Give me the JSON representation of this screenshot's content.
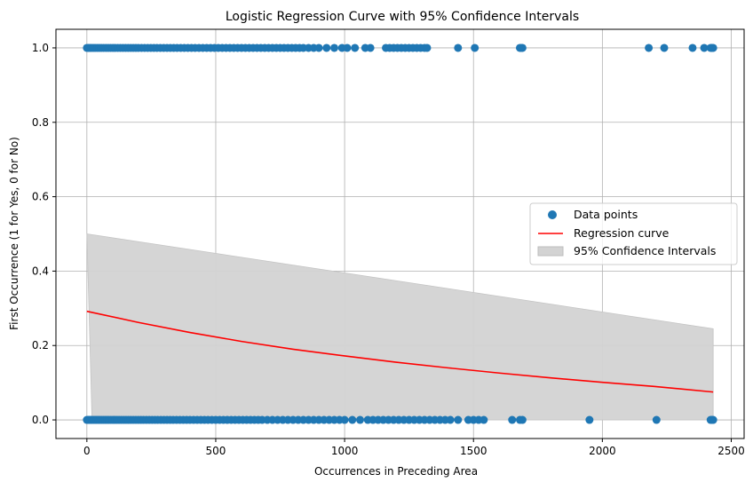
{
  "chart_data": {
    "type": "scatter",
    "title": "Logistic Regression Curve with 95% Confidence Intervals",
    "xlabel": "Occurrences in Preceding Area",
    "ylabel": "First Occurrence (1 for Yes, 0 for No)",
    "xlim": [
      -120,
      2550
    ],
    "ylim": [
      -0.05,
      1.05
    ],
    "x_ticks": [
      0,
      500,
      1000,
      1500,
      2000,
      2500
    ],
    "x_tick_labels": [
      "0",
      "500",
      "1000",
      "1500",
      "2000",
      "2500"
    ],
    "y_ticks": [
      0.0,
      0.2,
      0.4,
      0.6,
      0.8,
      1.0
    ],
    "y_tick_labels": [
      "0.0",
      "0.2",
      "0.4",
      "0.6",
      "0.8",
      "1.0"
    ],
    "grid": true,
    "legend_position": "center-right",
    "legend": [
      "Data points",
      "Regression curve",
      "95% Confidence Intervals"
    ],
    "colors": {
      "points": "#1f77b4",
      "curve": "#ff0000",
      "band": "#d3d3d3",
      "grid": "#b0b0b0"
    },
    "series": [
      {
        "name": "Data points",
        "type": "scatter",
        "y1_x": [
          0,
          6,
          12,
          18,
          25,
          32,
          40,
          48,
          56,
          65,
          74,
          83,
          92,
          101,
          110,
          120,
          130,
          140,
          150,
          160,
          170,
          180,
          190,
          200,
          212,
          224,
          236,
          248,
          260,
          272,
          285,
          298,
          311,
          324,
          337,
          350,
          364,
          378,
          392,
          406,
          420,
          435,
          450,
          465,
          480,
          495,
          510,
          525,
          540,
          555,
          570,
          585,
          600,
          615,
          630,
          645,
          660,
          675,
          690,
          705,
          720,
          735,
          750,
          765,
          780,
          795,
          810,
          825,
          840,
          860,
          880,
          900,
          930,
          960,
          990,
          1010,
          1040,
          1080,
          1100,
          1160,
          1175,
          1190,
          1205,
          1220,
          1235,
          1250,
          1265,
          1280,
          1295,
          1310,
          1320,
          1440,
          1505,
          1680,
          1685,
          1690,
          2180,
          2240,
          2350,
          2395,
          2420,
          2425,
          2430
        ],
        "y1_y": 1,
        "y0_x": [
          0,
          5,
          10,
          15,
          20,
          26,
          32,
          38,
          44,
          50,
          57,
          64,
          71,
          78,
          85,
          93,
          101,
          109,
          117,
          125,
          134,
          143,
          152,
          161,
          170,
          180,
          190,
          200,
          210,
          220,
          231,
          242,
          253,
          264,
          275,
          287,
          299,
          311,
          323,
          335,
          348,
          361,
          374,
          387,
          400,
          414,
          428,
          442,
          456,
          470,
          485,
          500,
          515,
          530,
          545,
          560,
          575,
          590,
          605,
          620,
          635,
          650,
          665,
          680,
          700,
          720,
          740,
          760,
          780,
          800,
          820,
          840,
          860,
          880,
          900,
          920,
          940,
          960,
          980,
          1000,
          1030,
          1060,
          1090,
          1110,
          1130,
          1150,
          1170,
          1190,
          1210,
          1230,
          1250,
          1270,
          1290,
          1310,
          1330,
          1350,
          1370,
          1390,
          1410,
          1440,
          1480,
          1500,
          1520,
          1540,
          1650,
          1680,
          1690,
          1950,
          2210,
          2420,
          2425,
          2430
        ],
        "y0_y": 0
      },
      {
        "name": "Regression curve",
        "type": "line",
        "x": [
          0,
          200,
          400,
          600,
          800,
          1000,
          1200,
          1400,
          1600,
          1800,
          2000,
          2200,
          2430
        ],
        "y": [
          0.292,
          0.262,
          0.235,
          0.211,
          0.19,
          0.172,
          0.155,
          0.14,
          0.126,
          0.113,
          0.101,
          0.09,
          0.075
        ]
      },
      {
        "name": "95% Confidence Intervals",
        "type": "area",
        "x": [
          0,
          20,
          2430
        ],
        "upper": [
          0.5,
          0.498,
          0.245
        ],
        "lower": [
          0.5,
          0.0,
          0.0
        ]
      }
    ]
  }
}
